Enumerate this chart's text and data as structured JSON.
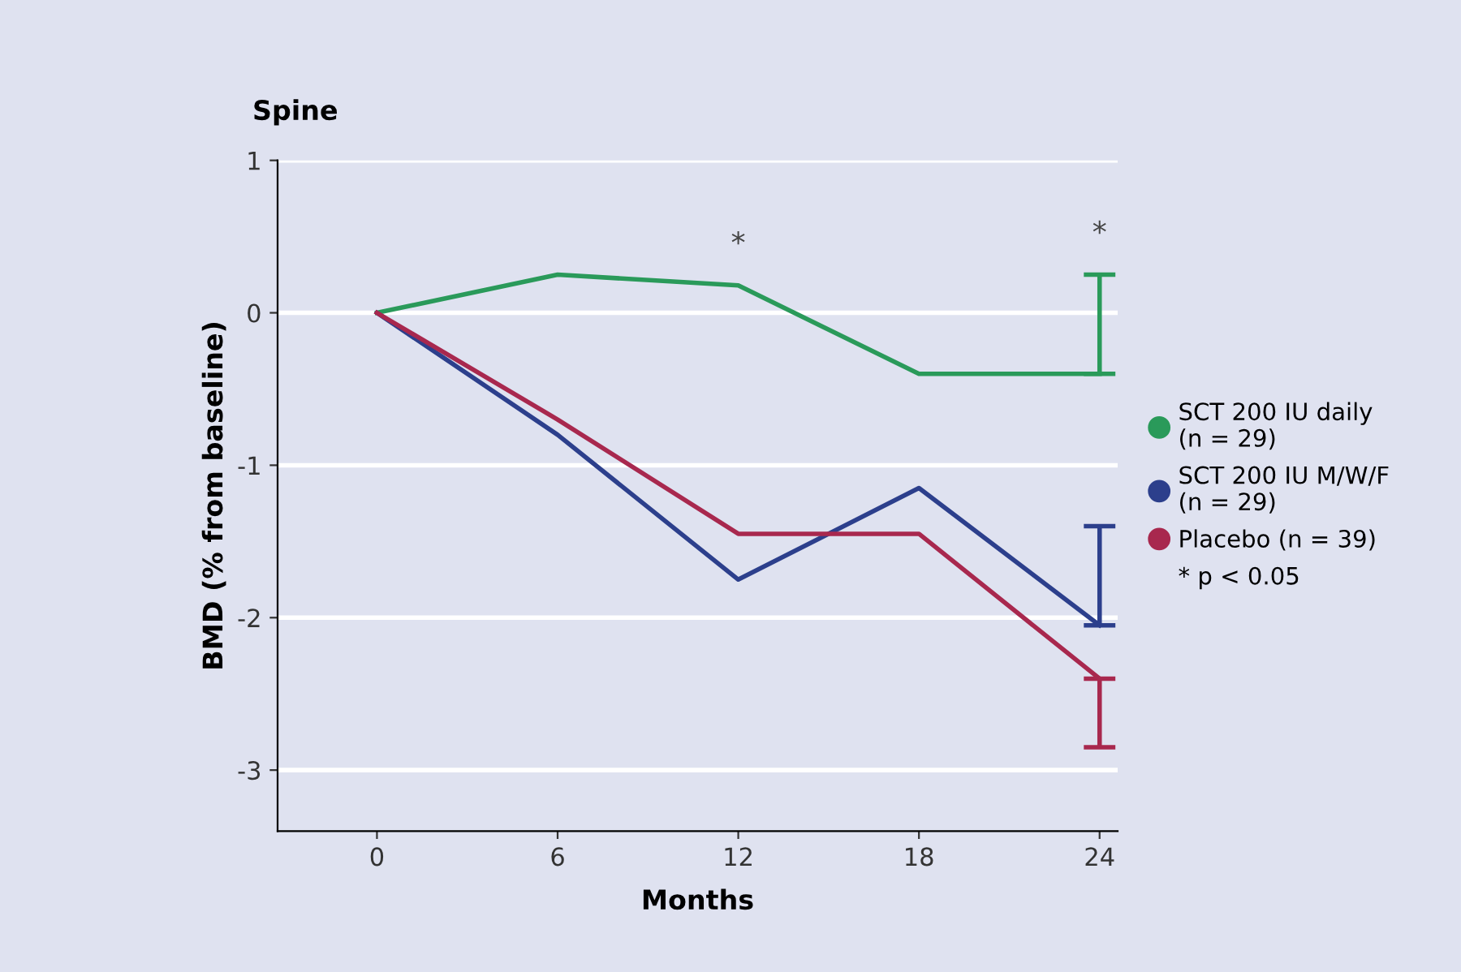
{
  "chart_data": {
    "type": "line",
    "title": "Spine",
    "xlabel": "Months",
    "ylabel": "BMD (% from baseline)",
    "x": [
      0,
      6,
      12,
      18,
      24
    ],
    "series": [
      {
        "name": "SCT 200 IU daily\n(n = 29)",
        "color": "#2a9a5a",
        "values": [
          0,
          0.25,
          0.18,
          -0.4,
          -0.4
        ],
        "errors": [
          null,
          null,
          null,
          null,
          [
            -0.4,
            0.25
          ]
        ]
      },
      {
        "name": "SCT 200 IU M/W/F\n(n = 29)",
        "color": "#2c3f8c",
        "values": [
          0,
          -0.8,
          -1.75,
          -1.15,
          -2.05
        ],
        "errors": [
          null,
          null,
          null,
          null,
          [
            -2.05,
            -1.4
          ]
        ]
      },
      {
        "name": "Placebo (n = 39)",
        "color": "#a8284e",
        "values": [
          0,
          -0.7,
          -1.45,
          -1.45,
          -2.4
        ],
        "errors": [
          null,
          null,
          null,
          null,
          [
            -2.85,
            -2.4
          ]
        ]
      }
    ],
    "annotations": [
      {
        "text": "*",
        "x": 12,
        "y": 0.18
      },
      {
        "text": "*",
        "x": 24,
        "y": 0.25
      },
      "* p < 0.05"
    ],
    "xlim": [
      -3.3,
      24.6
    ],
    "xticks": [
      0,
      6,
      12,
      18,
      24
    ],
    "ylim": [
      -3.4,
      1
    ],
    "yticks": [
      1,
      0,
      -1,
      -2,
      -3
    ],
    "grid": "y",
    "legend": "right",
    "marker": "none",
    "line_style": "solid"
  }
}
